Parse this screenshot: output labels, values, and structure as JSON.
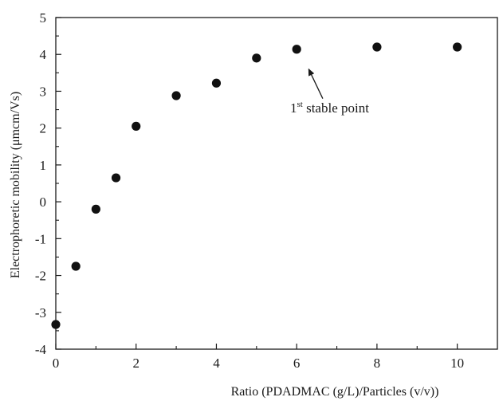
{
  "chart_data": {
    "type": "scatter",
    "xlabel": "Ratio (PDADMAC (g/L)/Particles (v/v))",
    "ylabel": "Electrophoretic mobility (μmcm/Vs)",
    "xlim": [
      0,
      11
    ],
    "ylim": [
      -4,
      5
    ],
    "x_ticks": [
      0,
      2,
      4,
      6,
      8,
      10
    ],
    "y_ticks": [
      -4,
      -3,
      -2,
      -1,
      0,
      1,
      2,
      3,
      4,
      5
    ],
    "x_tick_labels": [
      "0",
      "2",
      "4",
      "6",
      "8",
      "10"
    ],
    "y_tick_labels": [
      "-4",
      "-3",
      "-2",
      "-1",
      "0",
      "1",
      "2",
      "3",
      "4",
      "5"
    ],
    "grid": false,
    "marker_color": "#111111",
    "series": [
      {
        "x": [
          0,
          0.5,
          1,
          1.5,
          2,
          3,
          4,
          5,
          6,
          8,
          10
        ],
        "y": [
          -3.33,
          -1.75,
          -0.2,
          0.65,
          2.05,
          2.88,
          3.22,
          3.9,
          4.14,
          4.2,
          4.2
        ]
      }
    ],
    "annotations": [
      {
        "text_main": "1",
        "text_sup": "st",
        "text_rest": " stable point",
        "points_to": {
          "x": 6.3,
          "y": 3.6
        },
        "from": {
          "x": 6.65,
          "y": 2.8
        }
      }
    ]
  }
}
